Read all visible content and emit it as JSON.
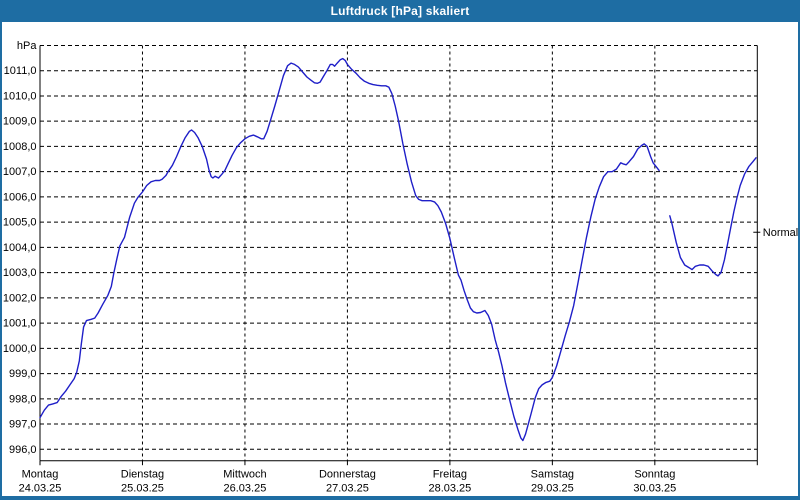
{
  "window": {
    "title": "Luftdruck [hPa] skaliert"
  },
  "colors": {
    "frame": "#1e6da3",
    "titlebar": "#1e6da3",
    "title_text": "#ffffff",
    "plot_background": "#ffffff",
    "grid": "#000000",
    "axis": "#000000",
    "text": "#000000",
    "line": "#1f1fc8"
  },
  "chart_data": {
    "type": "line",
    "title": "Luftdruck [hPa] skaliert",
    "y_unit_label": "hPa",
    "ylabel": "",
    "xlabel": "",
    "ylim": [
      995.55,
      1012.05
    ],
    "xlim_days": [
      0,
      7
    ],
    "grid": "dashed",
    "legend_position": "none",
    "ytick_values": [
      1011,
      1010,
      1009,
      1008,
      1007,
      1006,
      1005,
      1004,
      1003,
      1002,
      1001,
      1000,
      999,
      998,
      997,
      996
    ],
    "ytick_labels": [
      "1011,0",
      "1010,0",
      "1009,0",
      "1008,0",
      "1007,0",
      "1006,0",
      "1005,0",
      "1004,0",
      "1003,0",
      "1002,0",
      "1001,0",
      "1000,0",
      "999,0",
      "998,0",
      "997,0",
      "996,0"
    ],
    "y_top_gridline_value": 1012,
    "days": [
      {
        "name": "Montag",
        "date": "24.03.25"
      },
      {
        "name": "Dienstag",
        "date": "25.03.25"
      },
      {
        "name": "Mittwoch",
        "date": "26.03.25"
      },
      {
        "name": "Donnerstag",
        "date": "27.03.25"
      },
      {
        "name": "Freitag",
        "date": "28.03.25"
      },
      {
        "name": "Samstag",
        "date": "29.03.25"
      },
      {
        "name": "Sonntag",
        "date": "30.03.25"
      }
    ],
    "normal_marker": {
      "label": "Normal",
      "value": 1004.6
    },
    "series": [
      {
        "name": "Luftdruck",
        "unit": "hPa",
        "gap_note": "data gap early Sunday",
        "points": [
          [
            0,
            997.25
          ],
          [
            1,
            997.55
          ],
          [
            2,
            997.75
          ],
          [
            3,
            997.8
          ],
          [
            4,
            997.85
          ],
          [
            5,
            998.1
          ],
          [
            6,
            998.3
          ],
          [
            7,
            998.55
          ],
          [
            8,
            998.8
          ],
          [
            8.6,
            999.05
          ],
          [
            9.2,
            999.5
          ],
          [
            9.7,
            1000.2
          ],
          [
            10.2,
            1000.85
          ],
          [
            10.9,
            1001.1
          ],
          [
            12,
            1001.15
          ],
          [
            12.8,
            1001.2
          ],
          [
            13.6,
            1001.4
          ],
          [
            14.7,
            1001.75
          ],
          [
            15.9,
            1002.1
          ],
          [
            16.7,
            1002.45
          ],
          [
            17.3,
            1003.0
          ],
          [
            18,
            1003.55
          ],
          [
            18.7,
            1004.05
          ],
          [
            19.8,
            1004.4
          ],
          [
            21,
            1005.2
          ],
          [
            22.1,
            1005.75
          ],
          [
            23,
            1006.0
          ],
          [
            24,
            1006.2
          ],
          [
            25,
            1006.45
          ],
          [
            26,
            1006.6
          ],
          [
            27,
            1006.65
          ],
          [
            28,
            1006.65
          ],
          [
            28.6,
            1006.7
          ],
          [
            29.5,
            1006.85
          ],
          [
            30,
            1007.0
          ],
          [
            31,
            1007.25
          ],
          [
            32,
            1007.6
          ],
          [
            33,
            1008.0
          ],
          [
            34,
            1008.35
          ],
          [
            35,
            1008.6
          ],
          [
            35.5,
            1008.65
          ],
          [
            36.2,
            1008.55
          ],
          [
            37,
            1008.35
          ],
          [
            38,
            1008.0
          ],
          [
            39,
            1007.5
          ],
          [
            39.6,
            1007.05
          ],
          [
            40.1,
            1006.8
          ],
          [
            40.5,
            1006.75
          ],
          [
            41,
            1006.82
          ],
          [
            41.8,
            1006.75
          ],
          [
            42.6,
            1006.9
          ],
          [
            43.3,
            1007.05
          ],
          [
            44,
            1007.3
          ],
          [
            45,
            1007.65
          ],
          [
            46,
            1007.95
          ],
          [
            47,
            1008.15
          ],
          [
            48,
            1008.3
          ],
          [
            49,
            1008.4
          ],
          [
            50,
            1008.45
          ],
          [
            50.9,
            1008.38
          ],
          [
            51.8,
            1008.3
          ],
          [
            52.4,
            1008.3
          ],
          [
            53.2,
            1008.6
          ],
          [
            54,
            1009.05
          ],
          [
            55,
            1009.6
          ],
          [
            56,
            1010.2
          ],
          [
            57,
            1010.8
          ],
          [
            58,
            1011.2
          ],
          [
            58.8,
            1011.3
          ],
          [
            59.6,
            1011.25
          ],
          [
            60.5,
            1011.15
          ],
          [
            61.5,
            1010.95
          ],
          [
            62.5,
            1010.75
          ],
          [
            63.5,
            1010.62
          ],
          [
            64.3,
            1010.52
          ],
          [
            65,
            1010.5
          ],
          [
            65.6,
            1010.55
          ],
          [
            66.3,
            1010.75
          ],
          [
            67.2,
            1011.0
          ],
          [
            68,
            1011.25
          ],
          [
            68.5,
            1011.25
          ],
          [
            69,
            1011.18
          ],
          [
            69.6,
            1011.3
          ],
          [
            70.3,
            1011.43
          ],
          [
            70.9,
            1011.48
          ],
          [
            71.5,
            1011.4
          ],
          [
            72,
            1011.25
          ],
          [
            73,
            1011.05
          ],
          [
            74,
            1010.9
          ],
          [
            75,
            1010.72
          ],
          [
            76,
            1010.58
          ],
          [
            77,
            1010.5
          ],
          [
            78,
            1010.45
          ],
          [
            79,
            1010.42
          ],
          [
            80,
            1010.4
          ],
          [
            81,
            1010.4
          ],
          [
            81.7,
            1010.35
          ],
          [
            82.4,
            1010.1
          ],
          [
            83.2,
            1009.6
          ],
          [
            84,
            1009.0
          ],
          [
            85,
            1008.1
          ],
          [
            86,
            1007.3
          ],
          [
            87,
            1006.6
          ],
          [
            88,
            1006.05
          ],
          [
            88.7,
            1005.9
          ],
          [
            89.5,
            1005.85
          ],
          [
            90.5,
            1005.85
          ],
          [
            91.5,
            1005.85
          ],
          [
            92.4,
            1005.8
          ],
          [
            93.2,
            1005.65
          ],
          [
            94,
            1005.4
          ],
          [
            95,
            1004.95
          ],
          [
            96,
            1004.35
          ],
          [
            97,
            1003.6
          ],
          [
            98,
            1002.9
          ],
          [
            98.6,
            1002.7
          ],
          [
            99.3,
            1002.3
          ],
          [
            100,
            1001.95
          ],
          [
            100.8,
            1001.6
          ],
          [
            101.5,
            1001.45
          ],
          [
            102.3,
            1001.4
          ],
          [
            103.2,
            1001.42
          ],
          [
            104.2,
            1001.5
          ],
          [
            105,
            1001.3
          ],
          [
            105.8,
            1000.95
          ],
          [
            106.6,
            1000.35
          ],
          [
            107.4,
            999.85
          ],
          [
            108.2,
            999.3
          ],
          [
            109,
            998.65
          ],
          [
            110,
            997.95
          ],
          [
            111,
            997.3
          ],
          [
            112,
            996.75
          ],
          [
            112.6,
            996.45
          ],
          [
            113.1,
            996.35
          ],
          [
            113.7,
            996.6
          ],
          [
            114.2,
            996.9
          ],
          [
            115,
            997.4
          ],
          [
            116,
            998.05
          ],
          [
            116.8,
            998.4
          ],
          [
            117.6,
            998.55
          ],
          [
            118.5,
            998.65
          ],
          [
            119.4,
            998.7
          ],
          [
            120,
            998.85
          ],
          [
            121,
            999.3
          ],
          [
            122,
            999.9
          ],
          [
            123,
            1000.5
          ],
          [
            124,
            1001.05
          ],
          [
            125,
            1001.7
          ],
          [
            126,
            1002.6
          ],
          [
            127,
            1003.5
          ],
          [
            128,
            1004.4
          ],
          [
            129,
            1005.2
          ],
          [
            130,
            1005.9
          ],
          [
            131,
            1006.4
          ],
          [
            132,
            1006.8
          ],
          [
            133,
            1007.0
          ],
          [
            134,
            1007.0
          ],
          [
            135,
            1007.1
          ],
          [
            136,
            1007.35
          ],
          [
            136.7,
            1007.3
          ],
          [
            137.3,
            1007.27
          ],
          [
            138,
            1007.4
          ],
          [
            139,
            1007.6
          ],
          [
            140,
            1007.9
          ],
          [
            141,
            1008.05
          ],
          [
            141.5,
            1008.1
          ],
          [
            142.2,
            1008.0
          ],
          [
            143,
            1007.6
          ],
          [
            143.6,
            1007.35
          ],
          [
            144.3,
            1007.2
          ],
          [
            145,
            1007.05
          ],
          null,
          [
            147.5,
            1005.25
          ],
          [
            148,
            1004.95
          ],
          [
            149,
            1004.2
          ],
          [
            150,
            1003.6
          ],
          [
            151,
            1003.3
          ],
          [
            152,
            1003.2
          ],
          [
            152.7,
            1003.12
          ],
          [
            153.5,
            1003.25
          ],
          [
            154.5,
            1003.3
          ],
          [
            155.5,
            1003.3
          ],
          [
            156.5,
            1003.25
          ],
          [
            157.5,
            1003.05
          ],
          [
            158.3,
            1002.92
          ],
          [
            158.8,
            1002.87
          ],
          [
            159.5,
            1003.0
          ],
          [
            160.3,
            1003.5
          ],
          [
            161,
            1004.1
          ],
          [
            161.8,
            1004.8
          ],
          [
            162.5,
            1005.4
          ],
          [
            163.3,
            1006.0
          ],
          [
            164,
            1006.45
          ],
          [
            165,
            1006.9
          ],
          [
            166,
            1007.2
          ],
          [
            167,
            1007.4
          ],
          [
            167.7,
            1007.55
          ]
        ]
      }
    ]
  }
}
